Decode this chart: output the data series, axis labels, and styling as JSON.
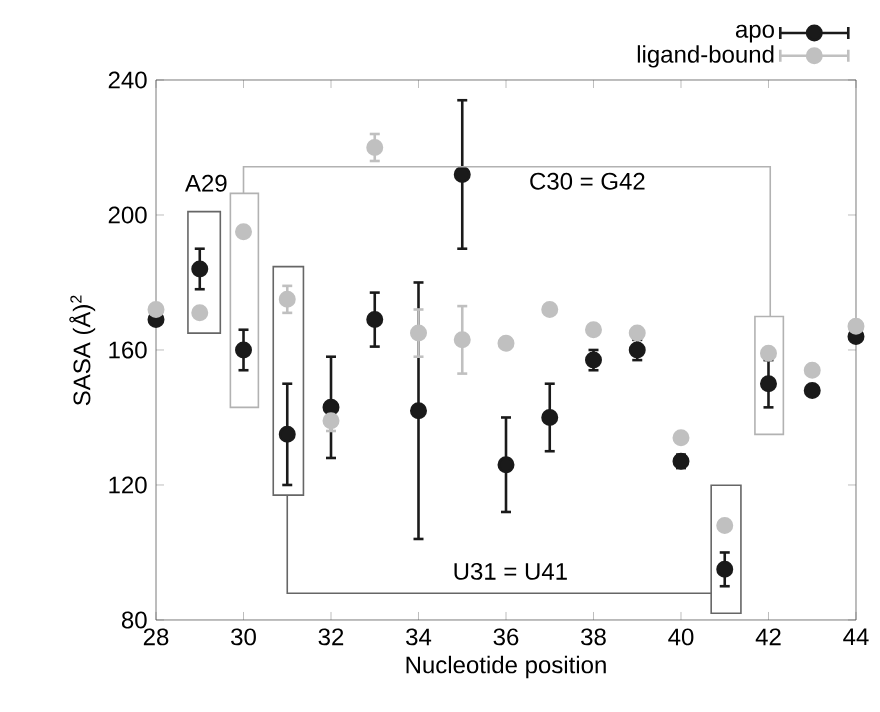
{
  "chart_data": {
    "type": "scatter",
    "xlabel": "Nucleotide position",
    "ylabel": "SASA (Å)$^{2}$",
    "x": [
      28,
      29,
      30,
      31,
      32,
      33,
      34,
      35,
      36,
      37,
      38,
      39,
      40,
      41,
      42,
      43,
      44
    ],
    "series": [
      {
        "name": "apo",
        "color": "#1a1a1a",
        "values": [
          169,
          184,
          160,
          135,
          143,
          169,
          142,
          212,
          126,
          140,
          157,
          160,
          127,
          95,
          150,
          148,
          164
        ],
        "errors": [
          null,
          6,
          6,
          15,
          15,
          8,
          38,
          22,
          14,
          10,
          3,
          3,
          2,
          5,
          7,
          1,
          null
        ]
      },
      {
        "name": "ligand-bound",
        "color": "#c0c0c0",
        "values": [
          172,
          171,
          195,
          175,
          139,
          220,
          165,
          163,
          162,
          172,
          166,
          165,
          134,
          108,
          159,
          154,
          167
        ],
        "errors": [
          null,
          null,
          null,
          4,
          3,
          4,
          7,
          10,
          null,
          null,
          null,
          null,
          null,
          null,
          null,
          null,
          null
        ]
      }
    ],
    "xlim": [
      28,
      44
    ],
    "ylim": [
      80,
      240
    ],
    "xticks": [
      28,
      30,
      32,
      34,
      36,
      38,
      40,
      42,
      44
    ],
    "yticks": [
      80,
      120,
      160,
      200,
      240
    ],
    "marker": "circle",
    "grid": false,
    "legend": "top right",
    "annotations": [
      "A29",
      "C30 = G42",
      "U31 = U41"
    ]
  }
}
